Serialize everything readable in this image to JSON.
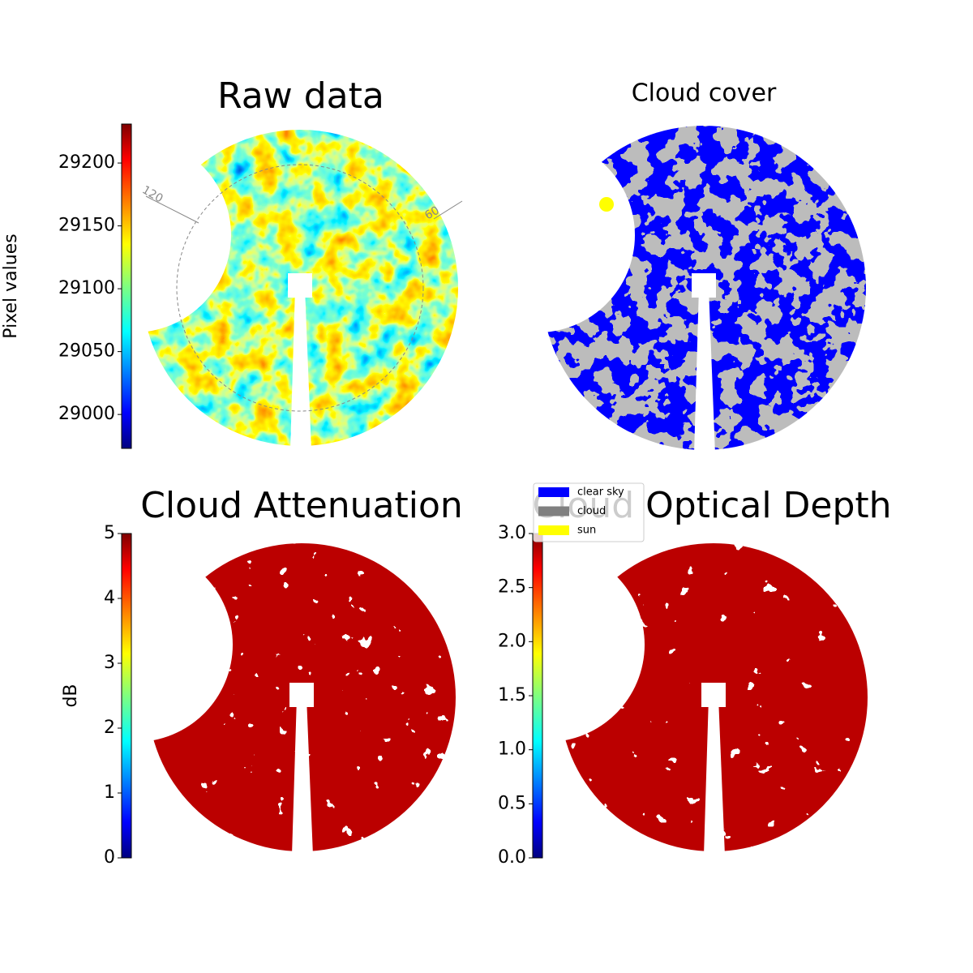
{
  "chart_data": [
    {
      "type": "image",
      "title": "Raw data",
      "colorbar_label": "Pixel values",
      "colormap": "jet",
      "clim": [
        28973,
        29231
      ],
      "cticks": [
        29000,
        29050,
        29100,
        29150,
        29200
      ],
      "annotations": [
        "120",
        "60"
      ]
    },
    {
      "type": "mask",
      "title": "Cloud cover",
      "series": [
        {
          "name": "clear sky",
          "color": "#0000ff"
        },
        {
          "name": "cloud",
          "color": "#808080"
        },
        {
          "name": "sun",
          "color": "#ffff00"
        }
      ]
    },
    {
      "type": "image",
      "title": "Cloud Attenuation",
      "colorbar_label": "dB",
      "colormap": "jet",
      "clim": [
        0,
        5
      ],
      "cticks": [
        0,
        1,
        2,
        3,
        4,
        5
      ]
    },
    {
      "type": "image",
      "title": "Cloud Optical Depth",
      "colormap": "jet",
      "clim": [
        0,
        3
      ],
      "cticks": [
        {
          "value": 0,
          "label": "0.0"
        },
        0.5,
        {
          "value": 1,
          "label": "1.0"
        },
        1.5,
        {
          "value": 2,
          "label": "2.0"
        },
        2.5,
        {
          "value": 3,
          "label": "3.0"
        }
      ]
    }
  ]
}
